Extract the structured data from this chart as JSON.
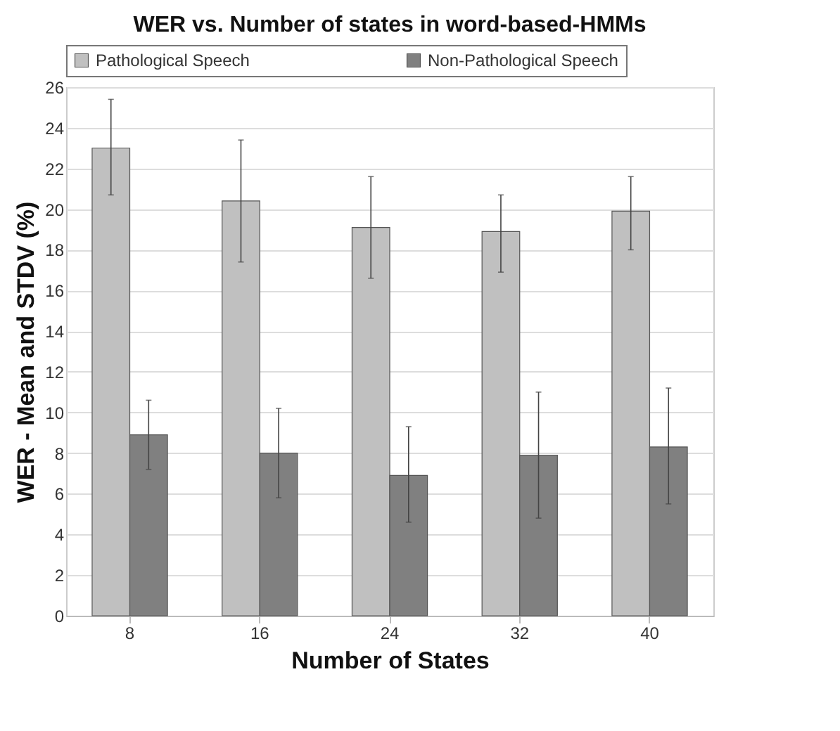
{
  "chart_data": {
    "type": "bar",
    "title": "WER vs. Number of states in word-based-HMMs",
    "xlabel": "Number of States",
    "ylabel": "WER - Mean and STDV (%)",
    "categories": [
      "8",
      "16",
      "24",
      "32",
      "40"
    ],
    "series": [
      {
        "name": "Pathological Speech",
        "color": "#c0c0c0",
        "values": [
          23.0,
          20.4,
          19.1,
          18.9,
          19.9
        ],
        "errors": [
          [
            20.7,
            25.4
          ],
          [
            17.4,
            23.4
          ],
          [
            16.6,
            21.6
          ],
          [
            16.9,
            20.7
          ],
          [
            18.0,
            21.6
          ]
        ]
      },
      {
        "name": "Non-Pathological Speech",
        "color": "#808080",
        "values": [
          8.9,
          8.0,
          6.9,
          7.9,
          8.3
        ],
        "errors": [
          [
            7.2,
            10.6
          ],
          [
            5.8,
            10.2
          ],
          [
            4.6,
            9.3
          ],
          [
            4.8,
            11.0
          ],
          [
            5.5,
            11.2
          ]
        ]
      }
    ],
    "ylim": [
      0,
      26
    ],
    "yticks": [
      0,
      2,
      4,
      6,
      8,
      10,
      12,
      14,
      16,
      18,
      20,
      22,
      24,
      26
    ],
    "grid": "y",
    "legend": "top"
  }
}
